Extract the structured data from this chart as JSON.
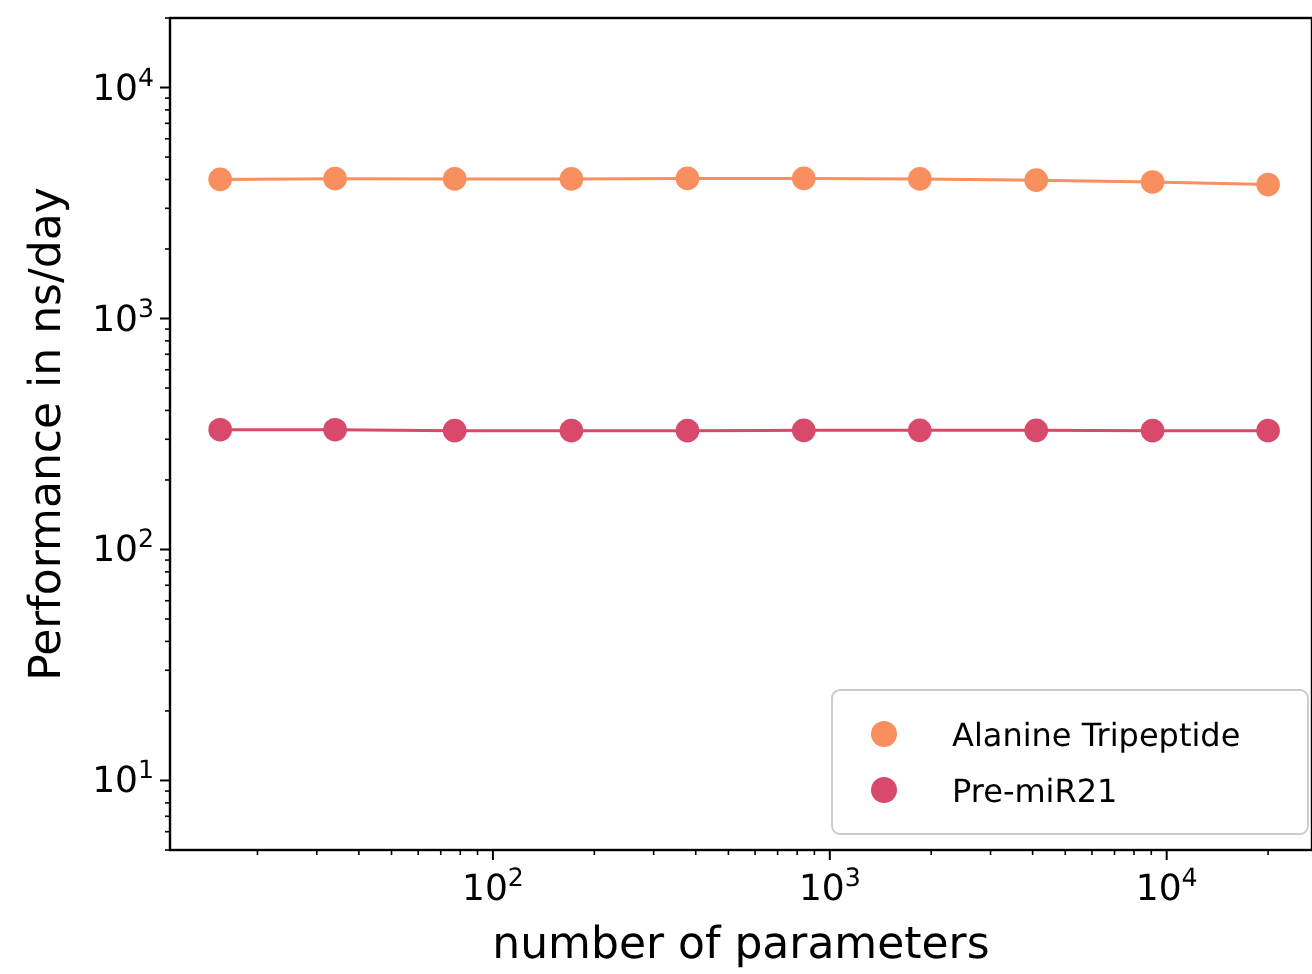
{
  "chart_data": {
    "type": "line",
    "xlabel": "number of parameters",
    "ylabel": "Performance in ns/day",
    "x": [
      15.5,
      34,
      77,
      171,
      378,
      837,
      1850,
      4100,
      9080,
      20000
    ],
    "series": [
      {
        "name": "Alanine Tripeptide",
        "color": "#f98e5e",
        "values": [
          4000,
          4030,
          4020,
          4020,
          4040,
          4040,
          4020,
          3970,
          3900,
          3800
        ]
      },
      {
        "name": "Pre-miR21",
        "color": "#d9496b",
        "values": [
          330,
          330,
          327,
          327,
          327,
          328,
          328,
          328,
          327,
          327
        ]
      }
    ],
    "log": "xy",
    "xlim": [
      11,
      27000
    ],
    "ylim": [
      5,
      20000
    ],
    "xticks": [
      {
        "value": 100,
        "label": "10$^{2}$"
      },
      {
        "value": 1000,
        "label": "10$^{3}$"
      },
      {
        "value": 10000,
        "label": "10$^{4}$"
      }
    ],
    "yticks": [
      {
        "value": 10,
        "label": "10$^{1}$"
      },
      {
        "value": 100,
        "label": "10$^{2}$"
      },
      {
        "value": 1000,
        "label": "10$^{3}$"
      },
      {
        "value": 10000,
        "label": "10$^{4}$"
      }
    ],
    "marker": "circle",
    "legend": "bottom right",
    "grid": false
  }
}
